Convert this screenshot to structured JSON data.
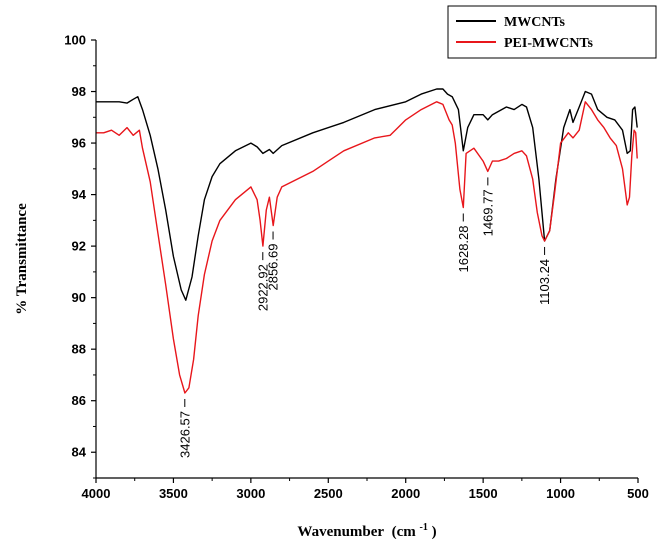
{
  "chart_data": {
    "type": "line",
    "xlabel": "Wavenumber",
    "xlabel_unit": "(cm",
    "xlabel_unit_exp": "-1",
    "xlabel_unit_close": ")",
    "ylabel": "% Transmittance",
    "xlim": [
      4000,
      500
    ],
    "ylim": [
      83,
      100
    ],
    "x_ticks": [
      4000,
      3500,
      3000,
      2500,
      2000,
      1500,
      1000,
      500
    ],
    "y_ticks": [
      84,
      86,
      88,
      90,
      92,
      94,
      96,
      98,
      100
    ],
    "legend_position": "top-right",
    "grid": false,
    "series": [
      {
        "name": "MWCNTs",
        "color": "#000000",
        "points": [
          [
            4000,
            97.6
          ],
          [
            3900,
            97.6
          ],
          [
            3850,
            97.6
          ],
          [
            3800,
            97.55
          ],
          [
            3760,
            97.7
          ],
          [
            3730,
            97.8
          ],
          [
            3700,
            97.3
          ],
          [
            3650,
            96.3
          ],
          [
            3600,
            95.0
          ],
          [
            3550,
            93.4
          ],
          [
            3500,
            91.6
          ],
          [
            3450,
            90.3
          ],
          [
            3420,
            89.9
          ],
          [
            3380,
            90.8
          ],
          [
            3340,
            92.4
          ],
          [
            3300,
            93.8
          ],
          [
            3250,
            94.7
          ],
          [
            3200,
            95.2
          ],
          [
            3100,
            95.7
          ],
          [
            3000,
            96.0
          ],
          [
            2960,
            95.85
          ],
          [
            2922,
            95.6
          ],
          [
            2880,
            95.75
          ],
          [
            2856,
            95.6
          ],
          [
            2800,
            95.9
          ],
          [
            2600,
            96.4
          ],
          [
            2400,
            96.8
          ],
          [
            2200,
            97.3
          ],
          [
            2000,
            97.6
          ],
          [
            1900,
            97.9
          ],
          [
            1800,
            98.1
          ],
          [
            1760,
            98.1
          ],
          [
            1730,
            97.9
          ],
          [
            1700,
            97.8
          ],
          [
            1660,
            97.3
          ],
          [
            1628,
            95.7
          ],
          [
            1600,
            96.6
          ],
          [
            1560,
            97.1
          ],
          [
            1500,
            97.1
          ],
          [
            1470,
            96.9
          ],
          [
            1440,
            97.1
          ],
          [
            1350,
            97.4
          ],
          [
            1300,
            97.3
          ],
          [
            1250,
            97.5
          ],
          [
            1220,
            97.4
          ],
          [
            1180,
            96.6
          ],
          [
            1140,
            94.6
          ],
          [
            1103,
            92.2
          ],
          [
            1070,
            92.6
          ],
          [
            1030,
            94.6
          ],
          [
            980,
            96.6
          ],
          [
            940,
            97.3
          ],
          [
            920,
            96.8
          ],
          [
            880,
            97.4
          ],
          [
            840,
            98.0
          ],
          [
            800,
            97.9
          ],
          [
            760,
            97.3
          ],
          [
            700,
            97.0
          ],
          [
            650,
            96.9
          ],
          [
            600,
            96.5
          ],
          [
            570,
            95.6
          ],
          [
            550,
            95.7
          ],
          [
            535,
            97.3
          ],
          [
            520,
            97.4
          ],
          [
            505,
            96.6
          ]
        ]
      },
      {
        "name": "PEI-MWCNTs",
        "color": "#e8161b",
        "points": [
          [
            4000,
            96.4
          ],
          [
            3950,
            96.4
          ],
          [
            3900,
            96.5
          ],
          [
            3850,
            96.3
          ],
          [
            3800,
            96.6
          ],
          [
            3760,
            96.3
          ],
          [
            3720,
            96.5
          ],
          [
            3700,
            95.8
          ],
          [
            3650,
            94.5
          ],
          [
            3600,
            92.5
          ],
          [
            3550,
            90.5
          ],
          [
            3500,
            88.4
          ],
          [
            3460,
            87.0
          ],
          [
            3426,
            86.3
          ],
          [
            3400,
            86.5
          ],
          [
            3370,
            87.6
          ],
          [
            3340,
            89.3
          ],
          [
            3300,
            90.9
          ],
          [
            3250,
            92.2
          ],
          [
            3200,
            93.0
          ],
          [
            3100,
            93.8
          ],
          [
            3000,
            94.3
          ],
          [
            2960,
            93.8
          ],
          [
            2940,
            93.0
          ],
          [
            2922,
            92.0
          ],
          [
            2900,
            93.4
          ],
          [
            2880,
            93.9
          ],
          [
            2856,
            92.8
          ],
          [
            2830,
            93.9
          ],
          [
            2800,
            94.3
          ],
          [
            2600,
            94.9
          ],
          [
            2500,
            95.3
          ],
          [
            2400,
            95.7
          ],
          [
            2200,
            96.2
          ],
          [
            2100,
            96.3
          ],
          [
            2000,
            96.9
          ],
          [
            1900,
            97.3
          ],
          [
            1800,
            97.6
          ],
          [
            1760,
            97.5
          ],
          [
            1720,
            96.9
          ],
          [
            1700,
            96.7
          ],
          [
            1680,
            96.0
          ],
          [
            1650,
            94.2
          ],
          [
            1628,
            93.5
          ],
          [
            1610,
            95.6
          ],
          [
            1560,
            95.8
          ],
          [
            1500,
            95.3
          ],
          [
            1470,
            94.9
          ],
          [
            1440,
            95.3
          ],
          [
            1400,
            95.3
          ],
          [
            1350,
            95.4
          ],
          [
            1300,
            95.6
          ],
          [
            1250,
            95.7
          ],
          [
            1220,
            95.5
          ],
          [
            1180,
            94.6
          ],
          [
            1150,
            93.3
          ],
          [
            1120,
            92.4
          ],
          [
            1103,
            92.2
          ],
          [
            1070,
            92.6
          ],
          [
            1040,
            94.0
          ],
          [
            1000,
            96.0
          ],
          [
            950,
            96.4
          ],
          [
            920,
            96.2
          ],
          [
            880,
            96.5
          ],
          [
            840,
            97.6
          ],
          [
            800,
            97.3
          ],
          [
            760,
            96.9
          ],
          [
            720,
            96.6
          ],
          [
            680,
            96.2
          ],
          [
            640,
            95.9
          ],
          [
            600,
            95.0
          ],
          [
            570,
            93.6
          ],
          [
            555,
            93.9
          ],
          [
            540,
            95.5
          ],
          [
            525,
            96.5
          ],
          [
            515,
            96.4
          ],
          [
            505,
            95.4
          ]
        ]
      }
    ],
    "annotations": [
      {
        "label": "3426.57",
        "x": 3426.57,
        "y": 86.3,
        "dir": "below"
      },
      {
        "label": "2922.92",
        "x": 2922.92,
        "y": 92.0,
        "dir": "below"
      },
      {
        "label": "2856.69",
        "x": 2856.69,
        "y": 92.8,
        "dir": "below"
      },
      {
        "label": "1628.28",
        "x": 1628.28,
        "y": 93.5,
        "dir": "below"
      },
      {
        "label": "1469.77",
        "x": 1469.77,
        "y": 94.9,
        "dir": "below"
      },
      {
        "label": "1103.24",
        "x": 1103.24,
        "y": 92.2,
        "dir": "below"
      }
    ]
  }
}
